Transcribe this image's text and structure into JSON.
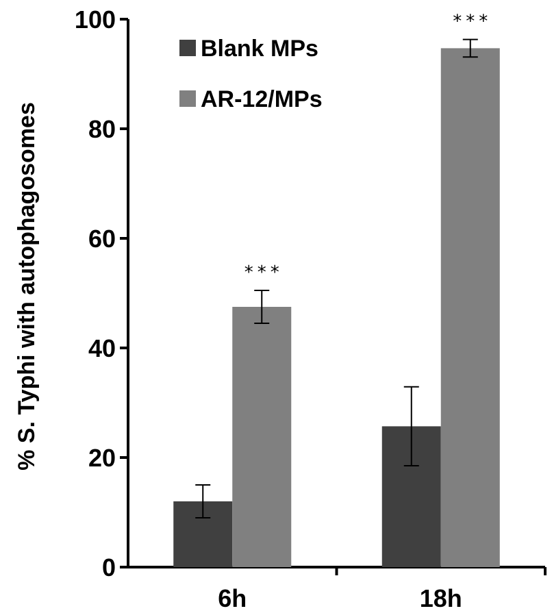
{
  "chart_data": {
    "type": "bar",
    "categories": [
      "6h",
      "18h"
    ],
    "ylabel": "% S. Typhi with autophagosomes",
    "ylim": [
      0,
      100
    ],
    "yticks": [
      "0",
      "20",
      "40",
      "60",
      "80",
      "100"
    ],
    "grid": false,
    "legend_position": "top-left",
    "series": [
      {
        "name": "Blank MPs",
        "color": "#404040",
        "values": [
          12,
          25.7
        ],
        "errors": [
          3.0,
          7.2
        ]
      },
      {
        "name": "AR-12/MPs",
        "color": "#808080",
        "values": [
          47.5,
          94.7
        ],
        "errors": [
          3.0,
          1.6
        ]
      }
    ],
    "annotations": [
      "***",
      "***"
    ]
  }
}
